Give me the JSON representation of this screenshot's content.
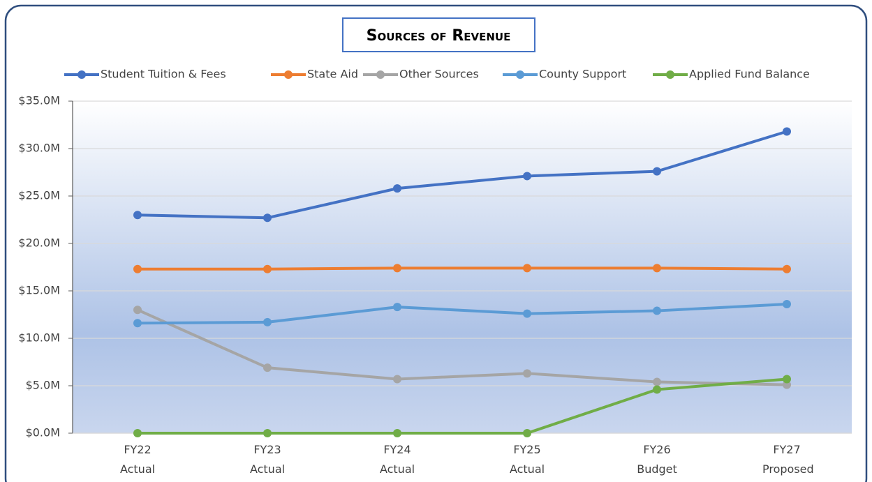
{
  "chart_data": {
    "type": "line",
    "title": "Sources of Revenue",
    "categories": [
      "FY22 Actual",
      "FY23 Actual",
      "FY24 Actual",
      "FY25 Actual",
      "FY26 Budget",
      "FY27 Proposed"
    ],
    "series": [
      {
        "name": "Student Tuition & Fees",
        "color": "#4472c4",
        "values": [
          23.0,
          22.7,
          25.8,
          27.1,
          27.6,
          31.8
        ]
      },
      {
        "name": "State Aid",
        "color": "#ed7d31",
        "values": [
          17.3,
          17.3,
          17.4,
          17.4,
          17.4,
          17.3
        ]
      },
      {
        "name": "Other Sources",
        "color": "#a5a5a5",
        "values": [
          13.0,
          6.9,
          5.7,
          6.3,
          5.4,
          5.1
        ]
      },
      {
        "name": "County Support",
        "color": "#5b9bd5",
        "values": [
          11.6,
          11.7,
          13.3,
          12.6,
          12.9,
          13.6
        ]
      },
      {
        "name": "Applied Fund Balance",
        "color": "#70ad47",
        "values": [
          0,
          0,
          0,
          0,
          4.6,
          5.7
        ]
      }
    ],
    "ylim": [
      0,
      35
    ],
    "yticks": [
      {
        "value": 0,
        "label": "$0.0M"
      },
      {
        "value": 5,
        "label": "$5.0M"
      },
      {
        "value": 10,
        "label": "$10.0M"
      },
      {
        "value": 15,
        "label": "$15.0M"
      },
      {
        "value": 20,
        "label": "$20.0M"
      },
      {
        "value": 25,
        "label": "$25.0M"
      },
      {
        "value": 30,
        "label": "$30.0M"
      },
      {
        "value": 35,
        "label": "$35.0M"
      }
    ],
    "grid": true
  }
}
